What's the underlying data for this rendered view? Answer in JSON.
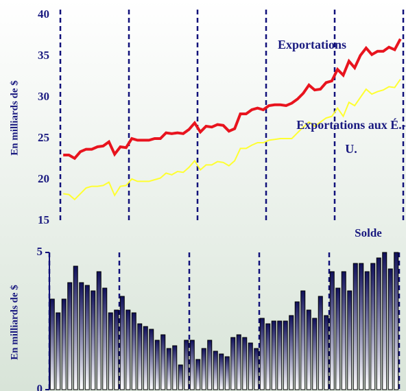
{
  "chart_data": [
    {
      "type": "line",
      "ylabel": "En milliards de $",
      "ylim": [
        15,
        40
      ],
      "yticks": [
        15,
        20,
        25,
        30,
        35,
        40
      ],
      "series": [
        {
          "name": "Exportations",
          "color": "#e8141e",
          "values": [
            23,
            23,
            22.6,
            23.4,
            23.7,
            23.7,
            24,
            24.1,
            24.6,
            23.1,
            24,
            23.9,
            25,
            24.8,
            24.8,
            24.8,
            25,
            25,
            25.7,
            25.6,
            25.7,
            25.6,
            26.1,
            26.9,
            25.8,
            26.5,
            26.4,
            26.7,
            26.6,
            25.9,
            26.2,
            28,
            28,
            28.5,
            28.7,
            28.5,
            29,
            29.1,
            29.1,
            29,
            29.3,
            29.8,
            30.5,
            31.5,
            30.9,
            31,
            31.8,
            32,
            33.4,
            32.7,
            34.4,
            33.6,
            35.1,
            36,
            35.2,
            35.6,
            35.6,
            36.1,
            35.8,
            37.1
          ]
        },
        {
          "name": "Exportations aux É.-U.",
          "color": "#ffff30",
          "values": [
            18.3,
            18.2,
            17.6,
            18.3,
            19,
            19.2,
            19.2,
            19.3,
            19.7,
            18.1,
            19.2,
            19.3,
            20.1,
            19.8,
            19.8,
            19.8,
            20,
            20.2,
            20.8,
            20.6,
            21,
            20.9,
            21.5,
            22.3,
            21.2,
            21.8,
            21.8,
            22.2,
            22.1,
            21.7,
            22.3,
            23.8,
            23.8,
            24.2,
            24.5,
            24.5,
            24.8,
            24.9,
            25,
            25,
            25,
            25.7,
            26.4,
            27,
            26.5,
            27,
            27.5,
            27.7,
            28.7,
            27.7,
            29.4,
            29,
            30,
            31,
            30.4,
            30.7,
            30.9,
            31.3,
            31.2,
            32.2
          ]
        }
      ]
    },
    {
      "type": "bar",
      "title": "Solde",
      "ylabel": "En milliards de $",
      "ylim": [
        0,
        5
      ],
      "yticks": [
        0,
        5
      ],
      "values": [
        3.3,
        2.8,
        3.3,
        3.9,
        4.5,
        3.9,
        3.8,
        3.6,
        4.3,
        3.7,
        2.8,
        2.9,
        3.4,
        2.9,
        2.8,
        2.4,
        2.3,
        2.2,
        1.8,
        2.0,
        1.5,
        1.6,
        0.9,
        1.8,
        1.8,
        1.1,
        1.5,
        1.8,
        1.4,
        1.3,
        1.2,
        1.9,
        2.0,
        1.9,
        1.7,
        1.5,
        2.6,
        2.4,
        2.5,
        2.5,
        2.5,
        2.7,
        3.2,
        3.6,
        2.9,
        2.6,
        3.4,
        2.7,
        4.3,
        3.7,
        4.3,
        3.6,
        4.6,
        4.6,
        4.3,
        4.6,
        4.8,
        5.0,
        4.4,
        5.0
      ]
    }
  ]
}
